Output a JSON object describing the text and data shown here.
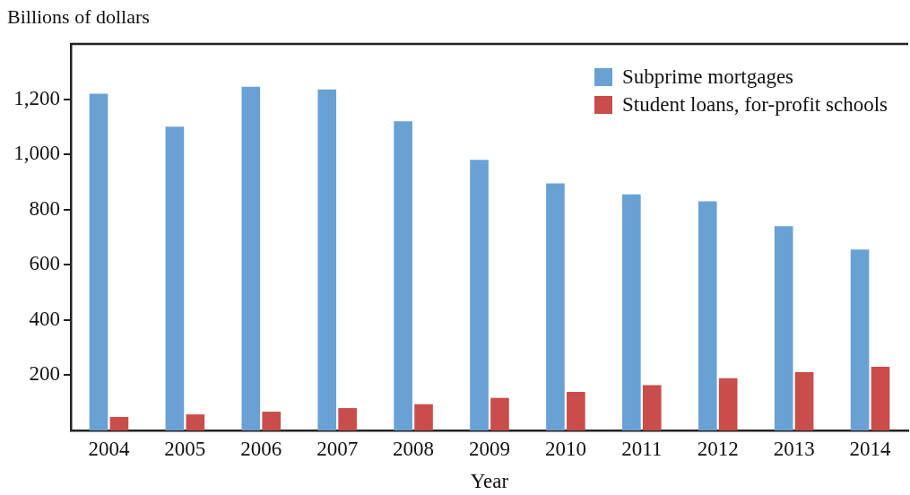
{
  "chart_data": {
    "type": "bar",
    "xlabel": "Year",
    "ylabel": "Billions of dollars",
    "categories": [
      "2004",
      "2005",
      "2006",
      "2007",
      "2008",
      "2009",
      "2010",
      "2011",
      "2012",
      "2013",
      "2014"
    ],
    "series": [
      {
        "name": "Subprime mortgages",
        "color": "#6aa1d5",
        "values": [
          1220,
          1100,
          1245,
          1235,
          1120,
          980,
          895,
          855,
          830,
          740,
          655
        ]
      },
      {
        "name": "Student loans, for-profit schools",
        "color": "#c84d4b",
        "values": [
          49,
          58,
          68,
          81,
          95,
          118,
          140,
          164,
          189,
          211,
          231
        ]
      }
    ],
    "ylim": [
      0,
      1400
    ],
    "yticks": [
      200,
      400,
      600,
      800,
      {
        "value": 1000,
        "label": "1,000"
      },
      {
        "value": 1200,
        "label": "1,200"
      }
    ],
    "grid": false,
    "legend": "top right"
  }
}
